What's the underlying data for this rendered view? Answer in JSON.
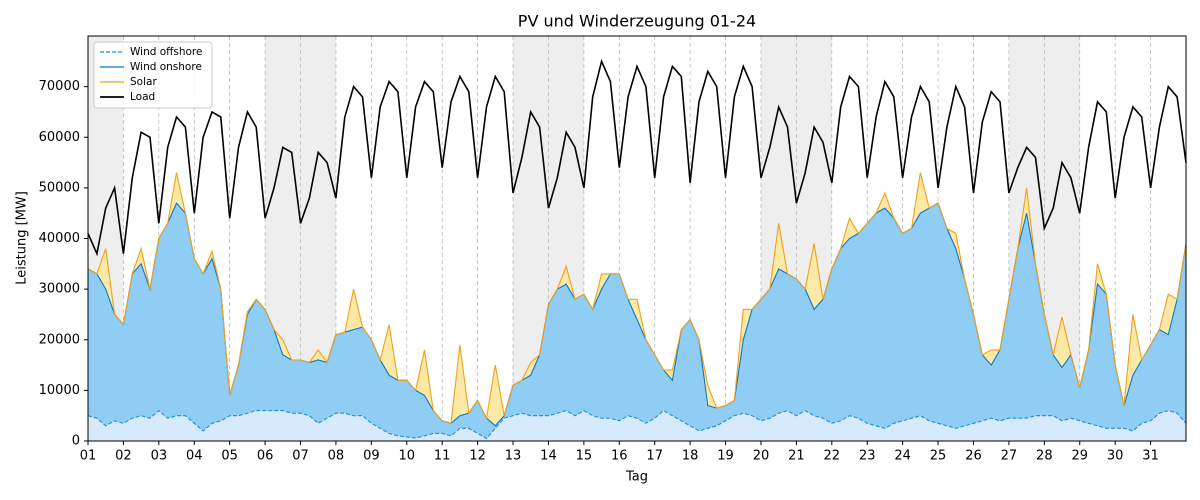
{
  "chart_data": {
    "type": "stacked-area-line",
    "title": "PV und Winderzeugung 01-24",
    "x_label": "Tag",
    "y_label": "Leistung [MW]",
    "xlim": [
      1,
      32
    ],
    "ylim": [
      0,
      80000
    ],
    "xticks": [
      {
        "value": 1,
        "label": "01"
      },
      {
        "value": 2,
        "label": "02"
      },
      {
        "value": 3,
        "label": "03"
      },
      {
        "value": 4,
        "label": "04"
      },
      {
        "value": 5,
        "label": "05"
      },
      {
        "value": 6,
        "label": "06"
      },
      {
        "value": 7,
        "label": "07"
      },
      {
        "value": 8,
        "label": "08"
      },
      {
        "value": 9,
        "label": "09"
      },
      10,
      11,
      12,
      13,
      14,
      15,
      16,
      17,
      18,
      19,
      20,
      21,
      22,
      23,
      24,
      25,
      26,
      27,
      28,
      29,
      30,
      31
    ],
    "yticks": [
      0,
      10000,
      20000,
      30000,
      40000,
      50000,
      60000,
      70000
    ],
    "x_grid": true,
    "legend": "upper left",
    "shaded": [
      [
        1,
        2
      ],
      [
        6,
        8
      ],
      [
        13,
        15
      ],
      [
        20,
        22
      ],
      [
        27,
        29
      ]
    ],
    "x": [
      1,
      1.25,
      1.5,
      1.75,
      2,
      2.25,
      2.5,
      2.75,
      3,
      3.25,
      3.5,
      3.75,
      4,
      4.25,
      4.5,
      4.75,
      5,
      5.25,
      5.5,
      5.75,
      6,
      6.25,
      6.5,
      6.75,
      7,
      7.25,
      7.5,
      7.75,
      8,
      8.25,
      8.5,
      8.75,
      9,
      9.25,
      9.5,
      9.75,
      10,
      10.25,
      10.5,
      10.75,
      11,
      11.25,
      11.5,
      11.75,
      12,
      12.25,
      12.5,
      12.75,
      13,
      13.25,
      13.5,
      13.75,
      14,
      14.25,
      14.5,
      14.75,
      15,
      15.25,
      15.5,
      15.75,
      16,
      16.25,
      16.5,
      16.75,
      17,
      17.25,
      17.5,
      17.75,
      18,
      18.25,
      18.5,
      18.75,
      19,
      19.25,
      19.5,
      19.75,
      20,
      20.25,
      20.5,
      20.75,
      21,
      21.25,
      21.5,
      21.75,
      22,
      22.25,
      22.5,
      22.75,
      23,
      23.25,
      23.5,
      23.75,
      24,
      24.25,
      24.5,
      24.75,
      25,
      25.25,
      25.5,
      25.75,
      26,
      26.25,
      26.5,
      26.75,
      27,
      27.25,
      27.5,
      27.75,
      28,
      28.25,
      28.5,
      28.75,
      29,
      29.25,
      29.5,
      29.75,
      30,
      30.25,
      30.5,
      30.75,
      31,
      31.25,
      31.5,
      31.75,
      32
    ],
    "series": [
      {
        "name": "Wind offshore",
        "color": "#1f8fd6",
        "fill": "#d6eafc",
        "linestyle": "dashed",
        "stack": true,
        "values": [
          5000,
          4500,
          3000,
          4000,
          3500,
          4500,
          5000,
          4500,
          6000,
          4500,
          5000,
          5000,
          3500,
          2000,
          3500,
          4000,
          5000,
          5000,
          5500,
          6000,
          6000,
          6000,
          6000,
          5500,
          5500,
          5000,
          3500,
          4500,
          5500,
          5500,
          5000,
          5000,
          3500,
          2500,
          1500,
          1000,
          800,
          600,
          1000,
          1500,
          1500,
          1000,
          2500,
          2500,
          1500,
          500,
          2500,
          4500,
          5000,
          5500,
          5000,
          5000,
          5000,
          5500,
          6000,
          5000,
          6000,
          5000,
          4500,
          4500,
          4000,
          5000,
          4500,
          3500,
          4500,
          6000,
          5000,
          4000,
          3000,
          2000,
          2500,
          3000,
          4000,
          5000,
          5500,
          5000,
          4000,
          4500,
          5500,
          6000,
          5000,
          6000,
          5000,
          4500,
          3500,
          4000,
          5000,
          4500,
          3500,
          3000,
          2500,
          3500,
          4000,
          4500,
          5000,
          4000,
          3500,
          3000,
          2500,
          3000,
          3500,
          4000,
          4500,
          4000,
          4500,
          4500,
          4500,
          5000,
          5000,
          5000,
          4000,
          4500,
          4000,
          3500,
          3000,
          2500,
          2500,
          2500,
          2000,
          3500,
          4000,
          5500,
          6000,
          5500,
          3500
        ]
      },
      {
        "name": "Wind onshore",
        "color": "#0b78c2",
        "fill": "#90cdf4",
        "linestyle": "solid",
        "stack": true,
        "values": [
          29000,
          28500,
          27000,
          21000,
          19500,
          28500,
          30000,
          25500,
          34000,
          38500,
          42000,
          40000,
          32500,
          31000,
          32500,
          26000,
          4000,
          10000,
          19500,
          22000,
          20000,
          16000,
          11000,
          10500,
          10500,
          10500,
          12500,
          11000,
          15500,
          16000,
          17000,
          17500,
          16500,
          13500,
          11500,
          11000,
          11200,
          9400,
          8000,
          4500,
          2500,
          2500,
          2500,
          3000,
          6500,
          4000,
          500,
          500,
          6000,
          6500,
          8000,
          12000,
          22000,
          24500,
          25000,
          23000,
          23000,
          21000,
          25500,
          28500,
          29000,
          23000,
          19500,
          16500,
          12500,
          8000,
          7000,
          18000,
          21000,
          18000,
          4500,
          3500,
          3000,
          3000,
          14500,
          21000,
          24000,
          25500,
          28500,
          27000,
          27000,
          24000,
          21000,
          23500,
          30500,
          34000,
          35000,
          36500,
          39500,
          42000,
          43500,
          40500,
          37000,
          37500,
          40000,
          42000,
          43500,
          39000,
          35500,
          29000,
          21500,
          13000,
          10500,
          14000,
          23500,
          33500,
          40500,
          30000,
          20000,
          12000,
          10500,
          12500,
          6500,
          14500,
          28000,
          26500,
          12500,
          4500,
          11000,
          12500,
          15000,
          16500,
          15000,
          22500,
          35500
        ]
      },
      {
        "name": "Solar",
        "color": "#f0a01e",
        "fill": "#fde9a6",
        "linestyle": "solid",
        "stack": true,
        "values": [
          0,
          0,
          8000,
          0,
          0,
          0,
          3000,
          0,
          0,
          0,
          6000,
          0,
          0,
          0,
          1500,
          0,
          0,
          0,
          500,
          0,
          0,
          0,
          3000,
          0,
          0,
          0,
          2000,
          0,
          0,
          0,
          8000,
          0,
          0,
          0,
          10000,
          0,
          0,
          0,
          9000,
          0,
          0,
          0,
          14000,
          0,
          0,
          0,
          12000,
          0,
          0,
          0,
          2500,
          0,
          0,
          0,
          3500,
          0,
          0,
          0,
          3000,
          0,
          0,
          0,
          4000,
          0,
          0,
          0,
          2000,
          0,
          0,
          0,
          4000,
          0,
          0,
          0,
          6000,
          0,
          0,
          0,
          9000,
          0,
          0,
          0,
          13000,
          0,
          0,
          0,
          4000,
          0,
          0,
          0,
          3000,
          0,
          0,
          0,
          8000,
          0,
          0,
          0,
          3000,
          0,
          0,
          0,
          3000,
          0,
          0,
          0,
          5000,
          0,
          0,
          0,
          10000,
          0,
          0,
          0,
          4000,
          0,
          0,
          0,
          12000,
          0,
          0,
          0,
          8000,
          0,
          0
        ]
      },
      {
        "name": "Load",
        "color": "#000000",
        "linestyle": "solid",
        "stack": false,
        "values": [
          41000,
          37000,
          46000,
          50000,
          37000,
          52000,
          61000,
          60000,
          43000,
          58000,
          64000,
          62000,
          45000,
          60000,
          65000,
          64000,
          44000,
          58000,
          65000,
          62000,
          44000,
          50000,
          58000,
          57000,
          43000,
          48000,
          57000,
          55000,
          48000,
          64000,
          70000,
          68000,
          52000,
          66000,
          71000,
          69000,
          52000,
          66000,
          71000,
          69000,
          54000,
          67000,
          72000,
          69000,
          52000,
          66000,
          72000,
          69000,
          49000,
          56000,
          65000,
          62000,
          46000,
          52000,
          61000,
          58000,
          50000,
          68000,
          75000,
          71000,
          54000,
          68000,
          74000,
          70000,
          52000,
          68000,
          74000,
          72000,
          51000,
          67000,
          73000,
          70000,
          52000,
          68000,
          74000,
          70000,
          52000,
          58000,
          66000,
          62000,
          47000,
          53000,
          62000,
          59000,
          51000,
          66000,
          72000,
          70000,
          52000,
          64000,
          71000,
          68000,
          52000,
          64000,
          70000,
          67000,
          50000,
          62000,
          70000,
          66000,
          49000,
          63000,
          69000,
          67000,
          49000,
          54000,
          58000,
          56000,
          42000,
          46000,
          55000,
          52000,
          45000,
          58000,
          67000,
          65000,
          48000,
          60000,
          66000,
          64000,
          50000,
          62000,
          70000,
          68000,
          55000
        ]
      }
    ]
  }
}
